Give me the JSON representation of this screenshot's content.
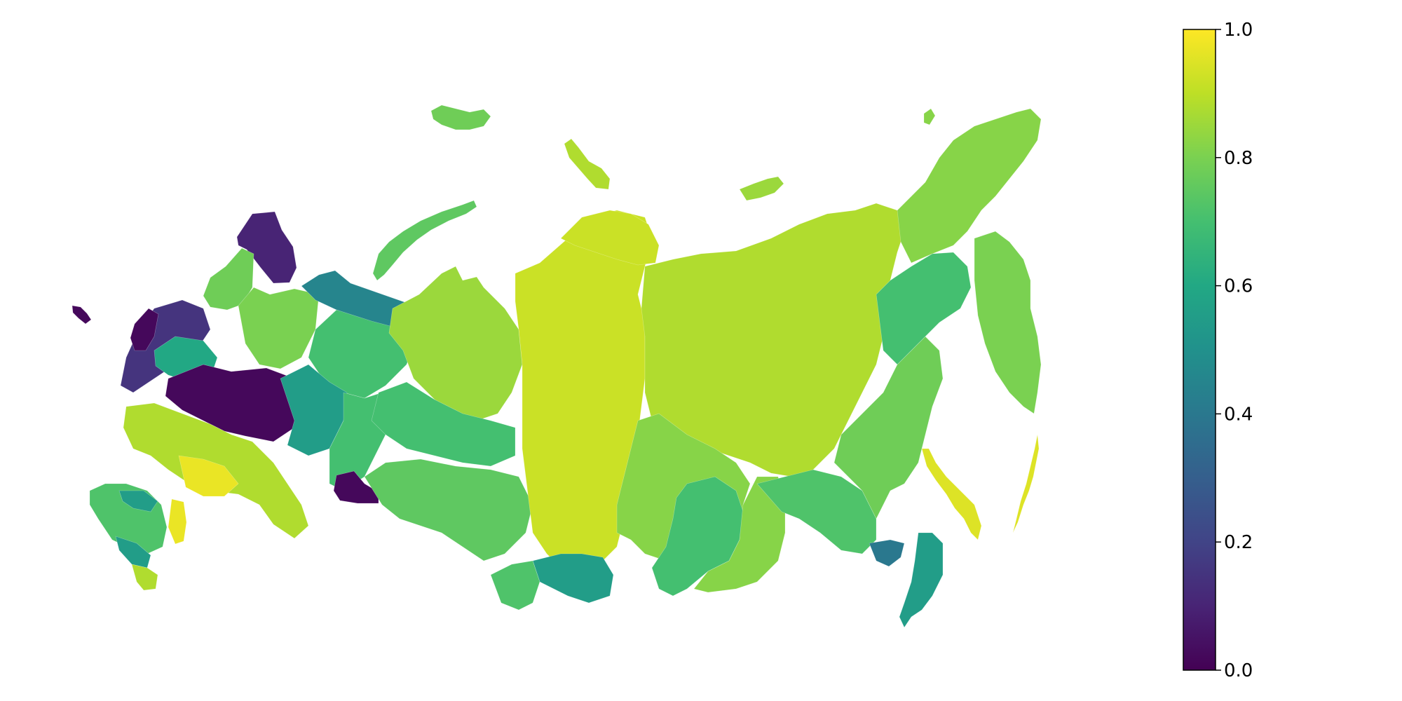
{
  "map": {
    "type": "choropleth",
    "subject": "regions",
    "color_scale": "viridis",
    "scale_colors": [
      "#440154",
      "#3b528b",
      "#21918c",
      "#5ec962",
      "#fde725"
    ],
    "regions": [
      {
        "id": "kaliningrad",
        "value": 0.02
      },
      {
        "id": "murmansk",
        "value": 0.1
      },
      {
        "id": "karelia",
        "value": 0.78
      },
      {
        "id": "arkhangelsk",
        "value": 0.8
      },
      {
        "id": "nenets-sea-coast",
        "value": 0.45
      },
      {
        "id": "komi",
        "value": 0.7
      },
      {
        "id": "nw-cluster-dark",
        "value": 0.02
      },
      {
        "id": "nw-cluster-purple",
        "value": 0.15
      },
      {
        "id": "central-dark",
        "value": 0.02
      },
      {
        "id": "central-teal",
        "value": 0.6
      },
      {
        "id": "volga-teal",
        "value": 0.55
      },
      {
        "id": "south-yellow",
        "value": 0.97
      },
      {
        "id": "south-lime",
        "value": 0.88
      },
      {
        "id": "south-green",
        "value": 0.72
      },
      {
        "id": "caucasus-teal",
        "value": 0.55
      },
      {
        "id": "urals-green",
        "value": 0.7
      },
      {
        "id": "kazakh-border-dark",
        "value": 0.02
      },
      {
        "id": "yamal",
        "value": 0.85
      },
      {
        "id": "khanty-mansi",
        "value": 0.7
      },
      {
        "id": "tyumen-omsk",
        "value": 0.75
      },
      {
        "id": "krasnoyarsk",
        "value": 0.92
      },
      {
        "id": "taimyr-north",
        "value": 0.92
      },
      {
        "id": "yakutia",
        "value": 0.88
      },
      {
        "id": "irkutsk",
        "value": 0.82
      },
      {
        "id": "buryatia",
        "value": 0.7
      },
      {
        "id": "tuva-altai",
        "value": 0.55
      },
      {
        "id": "zabaikalsky",
        "value": 0.82
      },
      {
        "id": "amur",
        "value": 0.72
      },
      {
        "id": "khabarovsk",
        "value": 0.78
      },
      {
        "id": "magadan",
        "value": 0.7
      },
      {
        "id": "chukotka",
        "value": 0.82
      },
      {
        "id": "kamchatka",
        "value": 0.8
      },
      {
        "id": "primorye",
        "value": 0.55
      },
      {
        "id": "jewish-ao",
        "value": 0.4
      },
      {
        "id": "sakhalin",
        "value": 0.95
      },
      {
        "id": "kuril-islands",
        "value": 0.95
      },
      {
        "id": "novaya-zemlya",
        "value": 0.75
      },
      {
        "id": "franz-josef-land",
        "value": 0.78
      },
      {
        "id": "severnaya-zemlya",
        "value": 0.88
      },
      {
        "id": "new-siberian-islands",
        "value": 0.85
      }
    ]
  },
  "colorbar": {
    "min": 0.0,
    "max": 1.0,
    "ticks": [
      "0.0",
      "0.2",
      "0.4",
      "0.6",
      "0.8",
      "1.0"
    ]
  }
}
